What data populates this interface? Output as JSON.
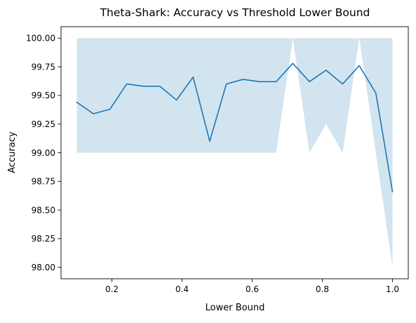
{
  "chart_data": {
    "type": "line",
    "title": "Theta-Shark: Accuracy vs Threshold Lower Bound",
    "xlabel": "Lower Bound",
    "ylabel": "Accuracy",
    "xlim": [
      0.055,
      1.045
    ],
    "ylim": [
      97.9,
      100.1
    ],
    "xticks": [
      0.2,
      0.4,
      0.6,
      0.8,
      1.0
    ],
    "xtick_labels": [
      "0.2",
      "0.4",
      "0.6",
      "0.8",
      "1.0"
    ],
    "yticks": [
      98.0,
      98.25,
      98.5,
      98.75,
      99.0,
      99.25,
      99.5,
      99.75,
      100.0
    ],
    "ytick_labels": [
      "98.00",
      "98.25",
      "98.50",
      "98.75",
      "99.00",
      "99.25",
      "99.50",
      "99.75",
      "100.00"
    ],
    "grid": false,
    "series": [
      {
        "color": "#1f77b4",
        "x": [
          0.1,
          0.1474,
          0.1947,
          0.2421,
          0.2895,
          0.3368,
          0.3842,
          0.4316,
          0.4789,
          0.5263,
          0.5737,
          0.6211,
          0.6684,
          0.7158,
          0.7632,
          0.8105,
          0.8579,
          0.9053,
          0.9526,
          1.0
        ],
        "y": [
          99.44,
          99.34,
          99.38,
          99.6,
          99.58,
          99.58,
          99.46,
          99.66,
          99.1,
          99.6,
          99.64,
          99.62,
          99.62,
          99.78,
          99.62,
          99.72,
          99.6,
          99.76,
          99.52,
          98.66
        ]
      }
    ],
    "band": {
      "color": "#1f77b4",
      "opacity": 0.2,
      "x": [
        0.1,
        0.1474,
        0.1947,
        0.2421,
        0.2895,
        0.3368,
        0.3842,
        0.4316,
        0.4789,
        0.5263,
        0.5737,
        0.6211,
        0.6684,
        0.7158,
        0.7632,
        0.8105,
        0.8579,
        0.9053,
        0.9526,
        1.0
      ],
      "lower": [
        99.0,
        99.0,
        99.0,
        99.0,
        99.0,
        99.0,
        99.0,
        99.0,
        99.0,
        99.0,
        99.0,
        99.0,
        99.0,
        100.0,
        99.0,
        99.25,
        99.0,
        100.0,
        99.0,
        98.0
      ],
      "upper": [
        100.0,
        100.0,
        100.0,
        100.0,
        100.0,
        100.0,
        100.0,
        100.0,
        100.0,
        100.0,
        100.0,
        100.0,
        100.0,
        100.0,
        100.0,
        100.0,
        100.0,
        100.0,
        100.0,
        100.0
      ]
    }
  }
}
